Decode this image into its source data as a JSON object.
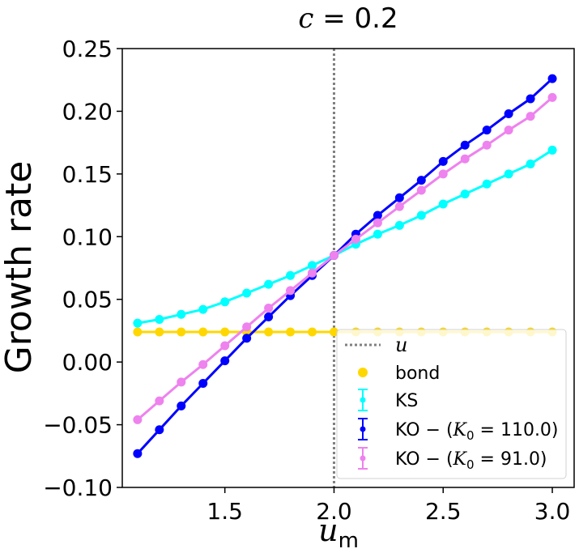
{
  "chart_data": {
    "type": "line",
    "title": "c = 0.2",
    "title_parts": {
      "var": "c",
      "rest": " = 0.2"
    },
    "xlabel": "u_m",
    "xlabel_parts": {
      "main": "u",
      "sub": "m"
    },
    "ylabel": "Growth rate",
    "xlim": [
      1.03,
      3.1
    ],
    "ylim": [
      -0.1,
      0.25
    ],
    "xticks": [
      1.5,
      2.0,
      2.5,
      3.0
    ],
    "xtick_labels": [
      "1.5",
      "2.0",
      "2.5",
      "3.0"
    ],
    "yticks": [
      -0.1,
      -0.05,
      0.0,
      0.05,
      0.1,
      0.15,
      0.2,
      0.25
    ],
    "ytick_labels": [
      "−0.10",
      "−0.05",
      "0.00",
      "0.05",
      "0.10",
      "0.15",
      "0.20",
      "0.25"
    ],
    "vline": {
      "x": 2.0,
      "label": "u",
      "color": "#808080"
    },
    "x": [
      1.1,
      1.2,
      1.3,
      1.4,
      1.5,
      1.6,
      1.7,
      1.8,
      1.9,
      2.0,
      2.1,
      2.2,
      2.3,
      2.4,
      2.5,
      2.6,
      2.7,
      2.8,
      2.9,
      3.0
    ],
    "series": [
      {
        "name": "bond",
        "label": "bond",
        "color": "#ffd700",
        "line": true,
        "marker": "circle",
        "values": [
          0.024,
          0.024,
          0.024,
          0.024,
          0.024,
          0.024,
          0.024,
          0.024,
          0.024,
          0.024,
          0.024,
          0.024,
          0.024,
          0.024,
          0.024,
          0.024,
          0.024,
          0.024,
          0.024,
          0.024
        ]
      },
      {
        "name": "KS",
        "label": "KS",
        "color": "#00ffff",
        "line": true,
        "marker": "circle",
        "errorbar": true,
        "values": [
          0.031,
          0.034,
          0.038,
          0.042,
          0.048,
          0.055,
          0.062,
          0.069,
          0.077,
          0.085,
          0.094,
          0.102,
          0.109,
          0.117,
          0.126,
          0.134,
          0.142,
          0.15,
          0.158,
          0.169
        ]
      },
      {
        "name": "KO-110",
        "label_prefix": "KO − (",
        "label_var": "K",
        "label_sub": "0",
        "label_suffix": " = 110.0)",
        "color": "#0000ff",
        "line": true,
        "marker": "circle",
        "errorbar": true,
        "values": [
          -0.073,
          -0.054,
          -0.035,
          -0.017,
          0.001,
          0.019,
          0.036,
          0.053,
          0.069,
          0.085,
          0.102,
          0.117,
          0.131,
          0.145,
          0.16,
          0.173,
          0.185,
          0.198,
          0.21,
          0.226
        ]
      },
      {
        "name": "KO-91",
        "label_prefix": "KO − (",
        "label_var": "K",
        "label_sub": "0",
        "label_suffix": " = 91.0)",
        "color": "#ee82ee",
        "line": true,
        "marker": "circle",
        "errorbar": true,
        "values": [
          -0.046,
          -0.031,
          -0.016,
          -0.002,
          0.013,
          0.028,
          0.043,
          0.057,
          0.071,
          0.085,
          0.098,
          0.111,
          0.124,
          0.137,
          0.15,
          0.162,
          0.173,
          0.185,
          0.196,
          0.211
        ]
      }
    ],
    "legend": {
      "position": "lower-right"
    }
  }
}
